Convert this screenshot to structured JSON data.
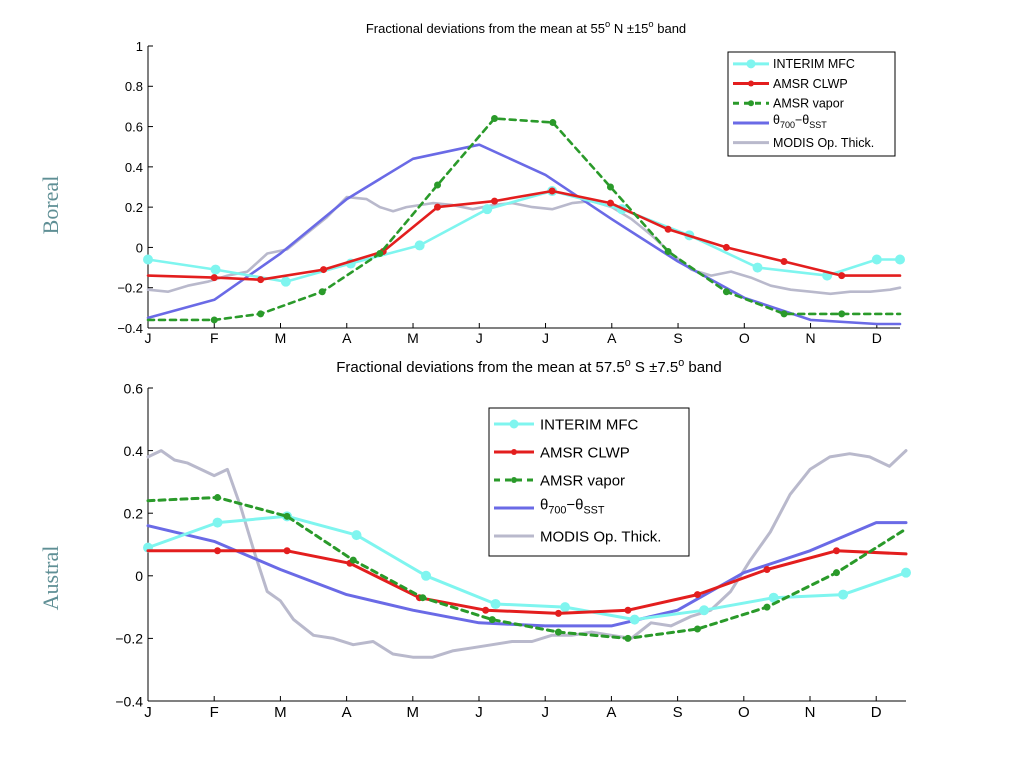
{
  "chart_data": [
    {
      "type": "line",
      "title": {
        "pre": "Fractional deviations from the mean at 55",
        "sup1": "o",
        "mid": " N ±15",
        "sup2": "o",
        "post": " band"
      },
      "ylabel": "Boreal",
      "ylim": [
        -0.4,
        1
      ],
      "yticks": [
        "−0.4",
        "−0.2",
        "0",
        "0.2",
        "0.4",
        "0.6",
        "0.8",
        "1"
      ],
      "ytick_values": [
        -0.4,
        -0.2,
        0,
        0.2,
        0.4,
        0.6,
        0.8,
        1
      ],
      "xlim": [
        0,
        11.35
      ],
      "categories": [
        "J",
        "F",
        "M",
        "A",
        "M",
        "J",
        "J",
        "A",
        "S",
        "O",
        "N",
        "D"
      ],
      "legend_position": "top-right",
      "series": [
        {
          "name": "INTERIM MFC",
          "color": "#7ff5ef",
          "style": "solid-circle",
          "x": [
            0,
            1.02,
            2.08,
            3.06,
            4.1,
            5.12,
            6.1,
            7.15,
            8.17,
            9.2,
            10.25,
            11.0,
            11.35
          ],
          "y": [
            -0.06,
            -0.11,
            -0.17,
            -0.08,
            0.01,
            0.19,
            0.28,
            0.19,
            0.06,
            -0.1,
            -0.14,
            -0.06,
            -0.06
          ]
        },
        {
          "name": "AMSR CLWP",
          "color": "#e31e1e",
          "style": "solid-dot",
          "x": [
            0,
            1.0,
            1.7,
            2.65,
            3.55,
            4.37,
            5.23,
            6.1,
            6.98,
            7.85,
            8.73,
            9.6,
            10.47,
            11.35
          ],
          "y": [
            -0.14,
            -0.15,
            -0.16,
            -0.11,
            -0.02,
            0.2,
            0.23,
            0.28,
            0.22,
            0.09,
            0.0,
            -0.07,
            -0.14,
            -0.14
          ]
        },
        {
          "name": "AMSR vapor",
          "color": "#2a9a2a",
          "style": "dashed-dot",
          "x": [
            0,
            1.0,
            1.7,
            2.63,
            3.5,
            4.37,
            5.23,
            6.11,
            6.98,
            7.85,
            8.73,
            9.6,
            10.47,
            11.35
          ],
          "y": [
            -0.36,
            -0.36,
            -0.33,
            -0.22,
            -0.03,
            0.31,
            0.64,
            0.62,
            0.3,
            -0.02,
            -0.22,
            -0.33,
            -0.33,
            -0.33
          ]
        },
        {
          "name": "θ700−θSST",
          "color": "#6a6ae6",
          "style": "solid",
          "x": [
            0,
            1.0,
            2.0,
            3.0,
            4.0,
            5.0,
            6.0,
            7.0,
            8.0,
            9.0,
            10.0,
            11.0,
            11.35
          ],
          "y": [
            -0.35,
            -0.26,
            -0.03,
            0.24,
            0.44,
            0.51,
            0.36,
            0.14,
            -0.07,
            -0.25,
            -0.36,
            -0.38,
            -0.38
          ]
        },
        {
          "name": "MODIS Op. Thick.",
          "color": "#b9b9cc",
          "style": "solid-wiggly",
          "x": [
            0,
            0.3,
            0.6,
            0.9,
            1.2,
            1.5,
            1.8,
            2.1,
            2.4,
            2.7,
            3.0,
            3.3,
            3.5,
            3.7,
            3.9,
            4.1,
            4.3,
            4.6,
            4.9,
            5.2,
            5.5,
            5.8,
            6.1,
            6.4,
            6.7,
            7.0,
            7.3,
            7.6,
            7.9,
            8.2,
            8.5,
            8.8,
            9.1,
            9.4,
            9.7,
            10.0,
            10.3,
            10.6,
            10.9,
            11.2,
            11.35
          ],
          "y": [
            -0.21,
            -0.22,
            -0.19,
            -0.17,
            -0.14,
            -0.12,
            -0.03,
            -0.01,
            0.07,
            0.15,
            0.25,
            0.24,
            0.2,
            0.18,
            0.2,
            0.21,
            0.22,
            0.21,
            0.19,
            0.21,
            0.22,
            0.2,
            0.19,
            0.22,
            0.23,
            0.2,
            0.14,
            0.06,
            -0.03,
            -0.11,
            -0.14,
            -0.12,
            -0.15,
            -0.19,
            -0.21,
            -0.22,
            -0.23,
            -0.22,
            -0.22,
            -0.21,
            -0.2
          ]
        }
      ]
    },
    {
      "type": "line",
      "title": {
        "pre": "Fractional deviations from the mean at 57.5",
        "sup1": "o",
        "mid": " S ±7.5",
        "sup2": "o",
        "post": " band"
      },
      "ylabel": "Austral",
      "ylim": [
        -0.4,
        0.6
      ],
      "yticks": [
        "−0.4",
        "−0.2",
        "0",
        "0.2",
        "0.4",
        "0.6"
      ],
      "ytick_values": [
        -0.4,
        -0.2,
        0,
        0.2,
        0.4,
        0.6
      ],
      "xlim": [
        0,
        11.45
      ],
      "categories": [
        "J",
        "F",
        "M",
        "A",
        "M",
        "J",
        "J",
        "A",
        "S",
        "O",
        "N",
        "D"
      ],
      "legend_position": "top-center",
      "series": [
        {
          "name": "INTERIM MFC",
          "color": "#7ff5ef",
          "style": "solid-circle",
          "x": [
            0,
            1.05,
            2.1,
            3.15,
            4.2,
            5.25,
            6.3,
            7.35,
            8.4,
            9.45,
            10.5,
            11.45
          ],
          "y": [
            0.09,
            0.17,
            0.19,
            0.13,
            0.0,
            -0.09,
            -0.1,
            -0.14,
            -0.11,
            -0.07,
            -0.06,
            0.01
          ]
        },
        {
          "name": "AMSR CLWP",
          "color": "#e31e1e",
          "style": "solid-dot",
          "x": [
            0,
            1.05,
            2.1,
            3.05,
            4.1,
            5.1,
            6.2,
            7.25,
            8.3,
            9.35,
            10.4,
            11.45
          ],
          "y": [
            0.08,
            0.08,
            0.08,
            0.04,
            -0.07,
            -0.11,
            -0.12,
            -0.11,
            -0.06,
            0.02,
            0.08,
            0.07
          ]
        },
        {
          "name": "AMSR vapor",
          "color": "#2a9a2a",
          "style": "dashed-dot",
          "x": [
            0,
            1.05,
            2.1,
            3.1,
            4.15,
            5.2,
            6.2,
            7.25,
            8.3,
            9.35,
            10.4,
            11.45
          ],
          "y": [
            0.24,
            0.25,
            0.19,
            0.05,
            -0.07,
            -0.14,
            -0.18,
            -0.2,
            -0.17,
            -0.1,
            0.01,
            0.15
          ]
        },
        {
          "name": "θ700−θSST",
          "color": "#6a6ae6",
          "style": "solid",
          "x": [
            0,
            1.0,
            2.0,
            3.0,
            4.0,
            5.0,
            6.0,
            7.0,
            8.0,
            9.0,
            10.0,
            11.0,
            11.45
          ],
          "y": [
            0.16,
            0.11,
            0.02,
            -0.06,
            -0.11,
            -0.15,
            -0.16,
            -0.16,
            -0.11,
            0.01,
            0.08,
            0.17,
            0.17
          ]
        },
        {
          "name": "MODIS Op. Thick.",
          "color": "#b9b9cc",
          "style": "solid-wiggly",
          "x": [
            0,
            0.2,
            0.4,
            0.6,
            0.8,
            1.0,
            1.2,
            1.4,
            1.6,
            1.8,
            2.0,
            2.2,
            2.5,
            2.8,
            3.1,
            3.4,
            3.7,
            4.0,
            4.3,
            4.6,
            4.9,
            5.2,
            5.5,
            5.8,
            6.1,
            6.4,
            6.7,
            7.0,
            7.3,
            7.6,
            7.9,
            8.2,
            8.5,
            8.8,
            9.1,
            9.4,
            9.7,
            10.0,
            10.3,
            10.6,
            10.9,
            11.2,
            11.45
          ],
          "y": [
            0.38,
            0.4,
            0.37,
            0.36,
            0.34,
            0.32,
            0.34,
            0.22,
            0.08,
            -0.05,
            -0.08,
            -0.14,
            -0.19,
            -0.2,
            -0.22,
            -0.21,
            -0.25,
            -0.26,
            -0.26,
            -0.24,
            -0.23,
            -0.22,
            -0.21,
            -0.21,
            -0.19,
            -0.19,
            -0.18,
            -0.19,
            -0.2,
            -0.15,
            -0.16,
            -0.13,
            -0.11,
            -0.05,
            0.05,
            0.14,
            0.26,
            0.34,
            0.38,
            0.39,
            0.38,
            0.35,
            0.4
          ]
        }
      ]
    }
  ]
}
